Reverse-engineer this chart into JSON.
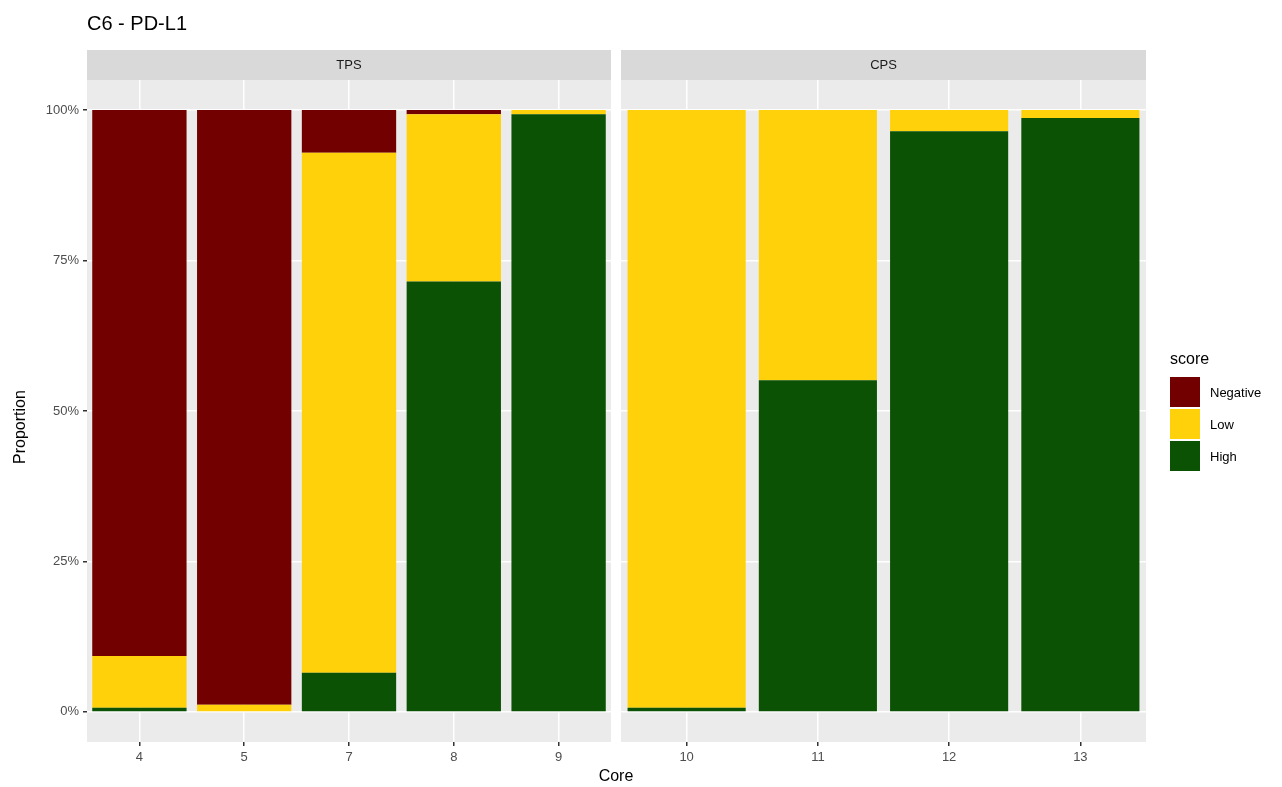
{
  "chart_data": [
    {
      "type": "bar",
      "title": "C6 - PD-L1",
      "subtitle": "TPS",
      "xlabel": "Core",
      "ylabel": "Proportion",
      "categories": [
        "4",
        "5",
        "7",
        "8",
        "9"
      ],
      "stacked": true,
      "grid": true,
      "legend": false,
      "series": [
        {
          "color": "#0b5204",
          "values": [
            0.7,
            0,
            6.5,
            71.5,
            99.3
          ]
        },
        {
          "color": "#ffd10a",
          "values": [
            8.6,
            1.2,
            86.4,
            27.8,
            0.7
          ]
        },
        {
          "color": "#730000",
          "values": [
            90.7,
            98.8,
            7.1,
            0.7,
            0
          ]
        }
      ],
      "ylim": [
        -5,
        105
      ],
      "yticks": [
        {
          "value": 0,
          "label": "0%"
        },
        {
          "value": 25,
          "label": "25%"
        },
        {
          "value": 50,
          "label": "50%"
        },
        {
          "value": 75,
          "label": "75%"
        },
        {
          "value": 100,
          "label": "100%"
        }
      ]
    },
    {
      "type": "bar",
      "subtitle": "CPS",
      "legend_title": "score",
      "categories": [
        "10",
        "11",
        "12",
        "13"
      ],
      "stacked": true,
      "grid": true,
      "legend": "right",
      "tick_labels": "x",
      "series": [
        {
          "name": "High",
          "color": "#0b5204",
          "values": [
            0.7,
            55.1,
            96.5,
            98.7
          ]
        },
        {
          "name": "Low",
          "color": "#ffd10a",
          "values": [
            99.3,
            44.9,
            3.5,
            1.3
          ]
        },
        {
          "name": "Negative",
          "color": "#730000",
          "values": [
            0,
            0,
            0,
            0
          ]
        }
      ],
      "ylim": [
        -5,
        105
      ],
      "yticks": [
        {
          "value": 0,
          "label": null
        },
        {
          "value": 25,
          "label": null
        },
        {
          "value": 50,
          "label": null
        },
        {
          "value": 75,
          "label": null
        },
        {
          "value": 100,
          "label": null
        }
      ]
    }
  ]
}
